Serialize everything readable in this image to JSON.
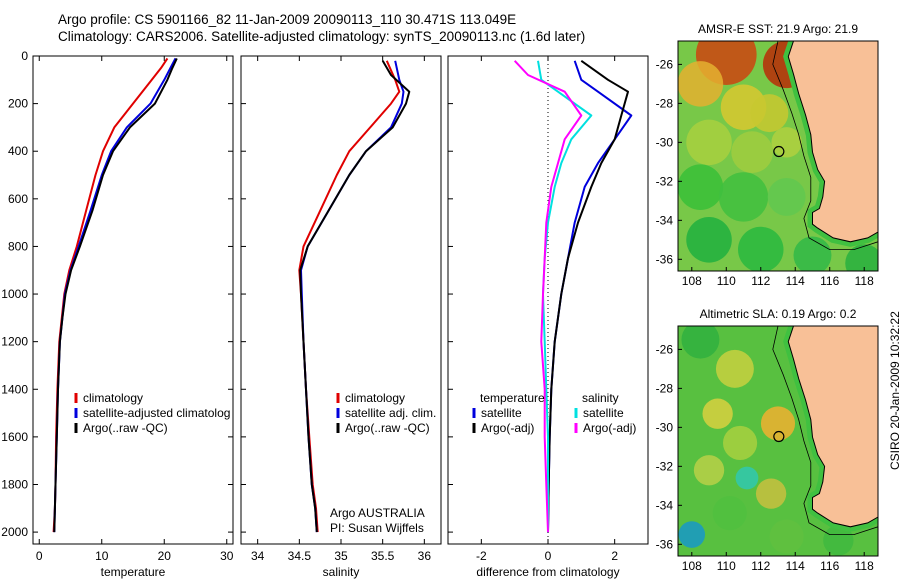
{
  "header": {
    "line1": "Argo profile: CS 5901166_82 11-Jan-2009 20090113_110 30.471S 113.049E",
    "line2": "Climatology: CARS2006. Satellite-adjusted climatology: synTS_20090113.nc (1.6d later)"
  },
  "credit": "CSIRO 20-Jan-2009 10:32:22",
  "colors": {
    "climatology": "#e00000",
    "satellite": "#0000dd",
    "argo": "#000000",
    "satellite_salinity": "#00e0e0",
    "argo_salinity_adj": "#ff00ff",
    "land": "#f8c097",
    "coast": "#000000"
  },
  "chart_data": [
    {
      "type": "line",
      "panel": "temperature",
      "xlabel": "temperature",
      "ylabel": "",
      "xlim": [
        -1,
        31
      ],
      "ylim": [
        2050,
        0
      ],
      "xticks": [
        0,
        10,
        20,
        30
      ],
      "yticks": [
        0,
        200,
        400,
        600,
        800,
        1000,
        1200,
        1400,
        1600,
        1800,
        2000
      ],
      "legend": [
        "climatology",
        "satellite-adjusted climatolog",
        "Argo(..raw -QC)"
      ],
      "legend_position": "lower-right",
      "series": [
        {
          "name": "climatology",
          "color_key": "climatology",
          "x": [
            20.5,
            19.5,
            18.0,
            15.0,
            12.0,
            10.2,
            9.0,
            7.5,
            6.0,
            4.8,
            4.0,
            3.6,
            3.2,
            2.9,
            2.7,
            2.6,
            2.5,
            2.3
          ],
          "y": [
            10,
            50,
            100,
            200,
            300,
            400,
            500,
            650,
            800,
            900,
            1000,
            1100,
            1200,
            1400,
            1600,
            1800,
            1900,
            2000
          ]
        },
        {
          "name": "satellite-adjusted climatolog",
          "color_key": "satellite",
          "x": [
            21.8,
            21.0,
            20.0,
            17.8,
            14.0,
            11.5,
            10.0,
            8.2,
            6.3,
            5.0,
            4.1,
            3.7,
            3.3,
            3.0,
            2.8,
            2.6,
            2.5,
            2.4
          ],
          "y": [
            10,
            50,
            100,
            200,
            300,
            400,
            500,
            650,
            800,
            900,
            1000,
            1100,
            1200,
            1400,
            1600,
            1800,
            1900,
            2000
          ]
        },
        {
          "name": "Argo(..raw -QC)",
          "color_key": "argo",
          "x": [
            22.0,
            21.3,
            20.5,
            18.5,
            14.5,
            11.8,
            10.2,
            8.5,
            6.5,
            5.1,
            4.2,
            3.7,
            3.3,
            3.0,
            2.8,
            2.6,
            2.5,
            2.4
          ],
          "y": [
            10,
            50,
            100,
            200,
            300,
            400,
            500,
            650,
            800,
            900,
            1000,
            1100,
            1200,
            1400,
            1600,
            1800,
            1900,
            2000
          ]
        }
      ]
    },
    {
      "type": "line",
      "panel": "salinity",
      "xlabel": "salinity",
      "ylabel": "",
      "xlim": [
        33.8,
        36.2
      ],
      "ylim": [
        2050,
        0
      ],
      "xticks": [
        34,
        34.5,
        35,
        35.5,
        36
      ],
      "xtick_labels": [
        "34",
        "34.5",
        "35",
        "35.5",
        "36"
      ],
      "legend": [
        "climatology",
        "satellite adj. clim.",
        "Argo(..raw -QC)"
      ],
      "legend_position": "lower-right",
      "annotations": [
        "Argo AUSTRALIA",
        "PI: Susan Wijffels"
      ],
      "series": [
        {
          "name": "climatology",
          "color_key": "climatology",
          "x": [
            35.55,
            35.65,
            35.7,
            35.6,
            35.35,
            35.1,
            34.95,
            34.75,
            34.55,
            34.5,
            34.52,
            34.55,
            34.58,
            34.62,
            34.66,
            34.7,
            34.72
          ],
          "y": [
            20,
            100,
            150,
            200,
            300,
            400,
            500,
            650,
            800,
            900,
            1000,
            1200,
            1400,
            1600,
            1800,
            1900,
            2000
          ]
        },
        {
          "name": "satellite adj. clim.",
          "color_key": "satellite",
          "x": [
            35.65,
            35.7,
            35.75,
            35.73,
            35.6,
            35.3,
            35.1,
            34.85,
            34.6,
            34.52,
            34.53,
            34.55,
            34.58,
            34.61,
            34.65,
            34.69,
            34.71
          ],
          "y": [
            20,
            100,
            150,
            200,
            300,
            400,
            500,
            650,
            800,
            900,
            1000,
            1200,
            1400,
            1600,
            1800,
            1900,
            2000
          ]
        },
        {
          "name": "Argo(..raw -QC)",
          "color_key": "argo",
          "x": [
            35.5,
            35.6,
            35.82,
            35.78,
            35.62,
            35.3,
            35.1,
            34.85,
            34.6,
            34.51,
            34.52,
            34.55,
            34.58,
            34.61,
            34.65,
            34.69,
            34.71
          ],
          "y": [
            20,
            80,
            150,
            200,
            300,
            400,
            500,
            650,
            800,
            900,
            1000,
            1200,
            1400,
            1600,
            1800,
            1900,
            2000
          ]
        }
      ]
    },
    {
      "type": "line",
      "panel": "difference",
      "xlabel": "difference from climatology",
      "ylabel": "",
      "xlim": [
        -3,
        3
      ],
      "ylim": [
        2050,
        0
      ],
      "xticks": [
        -2,
        0,
        2
      ],
      "legend": [
        "temperature",
        "satellite",
        "Argo(-adj)",
        "salinity",
        "satellite",
        "Argo(-adj)"
      ],
      "legend_position": "lower-center",
      "series": [
        {
          "name": "temperature satellite",
          "color_key": "satellite",
          "x": [
            0.8,
            1.0,
            1.5,
            2.5,
            2.0,
            1.5,
            1.1,
            0.8,
            0.6,
            0.4,
            0.2,
            0.1,
            0.05,
            0.02,
            0.0
          ],
          "y": [
            20,
            100,
            150,
            250,
            350,
            450,
            550,
            700,
            850,
            1000,
            1200,
            1400,
            1600,
            1800,
            2000
          ]
        },
        {
          "name": "temperature Argo(-adj)",
          "color_key": "argo",
          "x": [
            1.0,
            1.8,
            2.4,
            2.2,
            2.0,
            1.6,
            1.3,
            0.9,
            0.6,
            0.4,
            0.2,
            0.1,
            0.05,
            0.02,
            0.0
          ],
          "y": [
            20,
            100,
            150,
            250,
            350,
            450,
            550,
            700,
            850,
            1000,
            1200,
            1400,
            1600,
            1800,
            2000
          ]
        },
        {
          "name": "salinity satellite",
          "color_key": "satellite_salinity",
          "x": [
            -0.3,
            -0.2,
            0.3,
            1.3,
            0.7,
            0.4,
            0.2,
            0.0,
            -0.1,
            -0.15,
            -0.1,
            -0.05,
            0.0,
            0.0,
            0.0
          ],
          "y": [
            20,
            100,
            150,
            250,
            350,
            450,
            550,
            700,
            850,
            1000,
            1200,
            1400,
            1600,
            1800,
            2000
          ]
        },
        {
          "name": "salinity Argo(-adj)",
          "color_key": "argo_salinity_adj",
          "x": [
            -1.0,
            -0.6,
            0.5,
            1.0,
            0.5,
            0.3,
            0.1,
            -0.05,
            -0.1,
            -0.15,
            -0.2,
            -0.1,
            -0.1,
            -0.05,
            0.0
          ],
          "y": [
            20,
            80,
            150,
            250,
            350,
            450,
            550,
            700,
            850,
            1000,
            1200,
            1400,
            1600,
            1800,
            2000
          ]
        }
      ]
    },
    {
      "type": "heatmap",
      "panel": "sst_map",
      "title": "AMSR-E SST: 21.9 Argo: 21.9",
      "xlim": [
        107.2,
        118.8
      ],
      "ylim": [
        -36.6,
        -24.8
      ],
      "xticks": [
        108,
        110,
        112,
        114,
        116,
        118
      ],
      "yticks": [
        -26,
        -28,
        -30,
        -32,
        -34,
        -36
      ],
      "marker": {
        "lon": 113.049,
        "lat": -30.471
      }
    },
    {
      "type": "heatmap",
      "panel": "sla_map",
      "title": "Altimetric SLA: 0.19 Argo: 0.2",
      "xlim": [
        107.2,
        118.8
      ],
      "ylim": [
        -36.6,
        -24.8
      ],
      "xticks": [
        108,
        110,
        112,
        114,
        116,
        118
      ],
      "yticks": [
        -26,
        -28,
        -30,
        -32,
        -34,
        -36
      ],
      "marker": {
        "lon": 113.049,
        "lat": -30.471
      }
    }
  ]
}
